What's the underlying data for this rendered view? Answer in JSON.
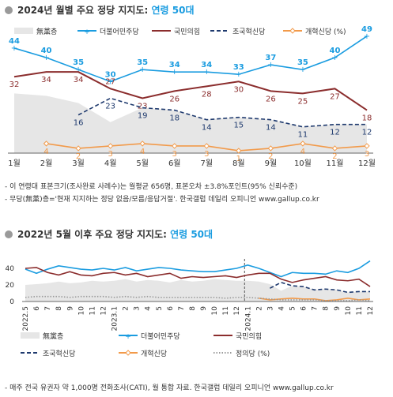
{
  "section1": {
    "title_main": "2024년 월별 주요 정당 지지도: ",
    "title_accent": "연령 50대"
  },
  "section2": {
    "title_main": "2022년 5월 이후 주요 정당 지지도: ",
    "title_accent": "연령 50대"
  },
  "notes": {
    "line1": "- 이 연령대 표본크기(조사완료 사례수)는 월평균 656명, 표본오차 ±3.8%포인트(95% 신뢰수준)",
    "line2": "- 무당(無黨)층='현재 지지하는 정당 없음/모름/응답거절'. 한국갤럽 데일리 오피니언 www.gallup.co.kr",
    "footer": "- 매주 전국 유권자 약 1,000명 전화조사(CATI), 월 통합 자료. 한국갤럽 데일리 오피니언 www.gallup.co.kr"
  },
  "colors": {
    "minjoo": "#1a9ce0",
    "ppp": "#8b2d2d",
    "rebuild": "#1f3a6e",
    "reform": "#f29a4a",
    "justice": "#9a9a9a",
    "noparty": "#e6e6e6"
  },
  "chart_data": [
    {
      "type": "line",
      "categories": [
        "1월",
        "2월",
        "3월",
        "4월",
        "5월",
        "6월",
        "7월",
        "8월",
        "9월",
        "10월",
        "11월",
        "12월"
      ],
      "legend": [
        "無黨층",
        "더불어민주당",
        "국민의힘",
        "조국혁신당",
        "개혁신당 (%)"
      ],
      "series": [
        {
          "name": "無黨층",
          "style": "area",
          "values": [
            25,
            24,
            21,
            13,
            19,
            18,
            14,
            15,
            14,
            11,
            12,
            12
          ]
        },
        {
          "name": "더불어민주당",
          "values": [
            44,
            40,
            35,
            30,
            35,
            34,
            34,
            33,
            37,
            35,
            40,
            49
          ],
          "labels": true
        },
        {
          "name": "국민의힘",
          "values": [
            32,
            34,
            34,
            27,
            23,
            26,
            28,
            30,
            26,
            25,
            27,
            18
          ],
          "labels": true
        },
        {
          "name": "조국혁신당",
          "values": [
            null,
            null,
            16,
            23,
            19,
            18,
            14,
            15,
            14,
            11,
            12,
            12
          ],
          "labels": true
        },
        {
          "name": "개혁신당",
          "values": [
            null,
            4,
            2,
            3,
            4,
            3,
            3,
            1,
            2,
            4,
            2,
            3
          ],
          "labels": true
        }
      ],
      "ylim": [
        0,
        50
      ]
    },
    {
      "type": "line",
      "x_tick_labels": [
        "2022.5",
        "6",
        "7",
        "8",
        "9",
        "10",
        "11",
        "12",
        "2023.1",
        "2",
        "3",
        "4",
        "5",
        "6",
        "7",
        "8",
        "9",
        "10",
        "11",
        "12",
        "2024.1",
        "2",
        "3",
        "4",
        "5",
        "6",
        "7",
        "8",
        "9",
        "10",
        "11",
        "12"
      ],
      "y_ticks": [
        0,
        20,
        40
      ],
      "legend": [
        "無黨층",
        "더불어민주당",
        "국민의힘",
        "조국혁신당",
        "개혁신당",
        "정의당 (%)"
      ],
      "series": [
        {
          "name": "無黨층",
          "style": "area",
          "values": [
            20,
            21,
            22,
            24,
            22,
            23,
            25,
            24,
            25,
            27,
            24,
            26,
            25,
            23,
            26,
            24,
            25,
            27,
            26,
            25,
            25,
            24,
            21,
            13,
            19,
            18,
            14,
            15,
            14,
            11,
            12,
            12
          ]
        },
        {
          "name": "더불어민주당",
          "values": [
            39,
            34,
            39,
            43,
            41,
            39,
            38,
            40,
            38,
            41,
            37,
            39,
            41,
            40,
            38,
            37,
            36,
            36,
            38,
            40,
            44,
            40,
            35,
            30,
            35,
            34,
            34,
            33,
            37,
            35,
            40,
            49
          ]
        },
        {
          "name": "국민의힘",
          "values": [
            40,
            41,
            35,
            32,
            36,
            32,
            31,
            34,
            35,
            32,
            34,
            30,
            32,
            34,
            28,
            30,
            29,
            30,
            31,
            29,
            32,
            34,
            34,
            27,
            23,
            26,
            28,
            30,
            26,
            25,
            27,
            18
          ]
        },
        {
          "name": "조국혁신당",
          "values": [
            null,
            null,
            null,
            null,
            null,
            null,
            null,
            null,
            null,
            null,
            null,
            null,
            null,
            null,
            null,
            null,
            null,
            null,
            null,
            null,
            null,
            null,
            16,
            23,
            19,
            18,
            14,
            15,
            14,
            11,
            12,
            12
          ]
        },
        {
          "name": "개혁신당",
          "values": [
            null,
            null,
            null,
            null,
            null,
            null,
            null,
            null,
            null,
            null,
            null,
            null,
            null,
            null,
            null,
            null,
            null,
            null,
            null,
            null,
            null,
            4,
            2,
            3,
            4,
            3,
            3,
            1,
            2,
            4,
            2,
            3
          ]
        },
        {
          "name": "정의당",
          "values": [
            5,
            6,
            6,
            6,
            5,
            6,
            6,
            6,
            5,
            6,
            5,
            6,
            5,
            5,
            5,
            5,
            5,
            5,
            4,
            5,
            5,
            4,
            3,
            2,
            2,
            2,
            2,
            1,
            1,
            1,
            2,
            1
          ]
        }
      ],
      "ylim": [
        0,
        52
      ]
    }
  ]
}
